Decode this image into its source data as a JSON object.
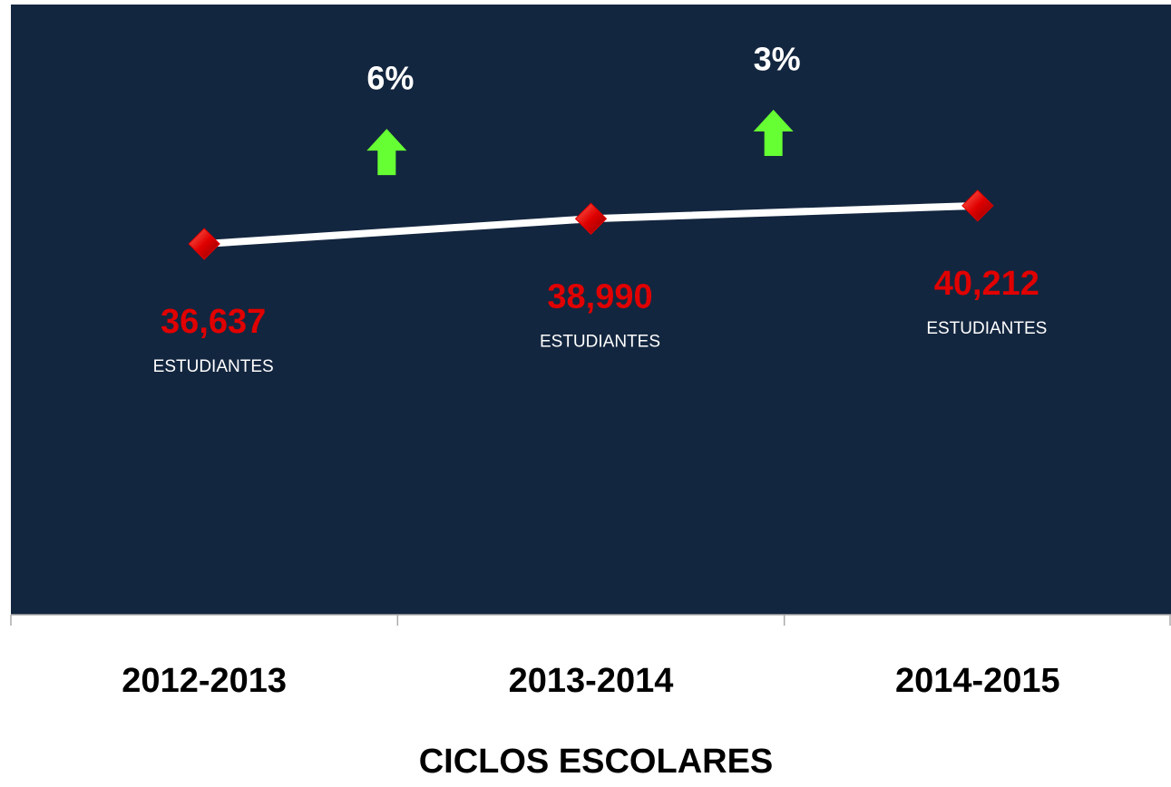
{
  "chart_data": {
    "type": "line",
    "x_label": "CICLOS ESCOLARES",
    "categories": [
      "2012-2013",
      "2013-2014",
      "2014-2015"
    ],
    "values": [
      36637,
      38990,
      40212
    ],
    "value_labels": [
      "36,637",
      "38,990",
      "40,212"
    ],
    "unit_label": "ESTUDIANTES",
    "color": "#ffffff",
    "marker_color": "#e00000",
    "ylim": [
      2000,
      59000
    ],
    "annotations": [
      {
        "text": "6%"
      },
      {
        "text": "3%"
      }
    ],
    "annotation_color": "#66ff33",
    "background": "#13263f"
  }
}
